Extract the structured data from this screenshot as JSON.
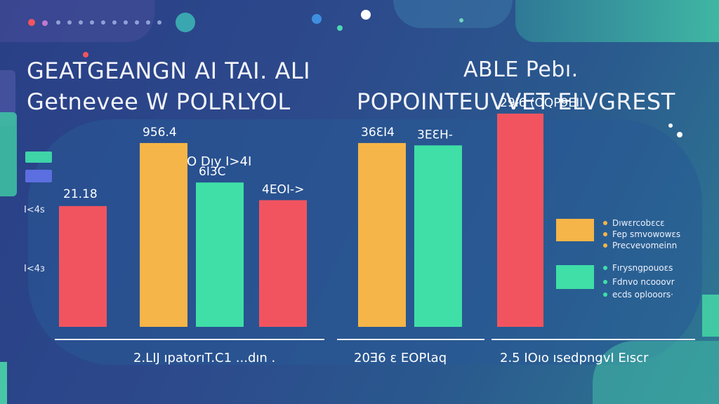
{
  "header": {
    "title_line1": "GEATGEANGN AI TAI. ALI",
    "title_line2": "Getnevee W POLRLYOL",
    "title_right_line1": "ABLE Pebı.",
    "title_right_line2": "POPOINTEUVVET ELVGREST"
  },
  "colors": {
    "red": "#f2545f",
    "orange": "#f6b548",
    "green": "#3fdfa7",
    "teal_accent": "#42c8a5",
    "purple": "#5c6fe0"
  },
  "chart_data": {
    "type": "bar",
    "title": "",
    "y_ticks": [
      {
        "label": "I<4s",
        "value": 200
      },
      {
        "label": "I<4ɜ",
        "value": 100
      }
    ],
    "ylim": [
      0,
      400
    ],
    "groups": [
      {
        "label": "2.LIJ ıpatorıT.C1 ...dın .",
        "bars": [
          {
            "label": "21.18",
            "value": 205,
            "color": "#f2545f"
          },
          {
            "label": "956.4",
            "value": 312,
            "color": "#f6b548"
          },
          {
            "label": "6I3C",
            "value": 245,
            "color": "#3fdfa7"
          },
          {
            "label": "4EOI->",
            "value": 215,
            "color": "#f2545f"
          }
        ],
        "group_title": "O Dıy I>4I"
      },
      {
        "label": "20Ǝ6 ɛ EOPƖaq",
        "bars": [
          {
            "label": "36ƐI4",
            "value": 312,
            "color": "#f6b548"
          },
          {
            "label": "3EƐH-",
            "value": 308,
            "color": "#3fdfa7"
          }
        ]
      },
      {
        "label": "2.5 IOıo ısedpngvI Eıscr",
        "bars": [
          {
            "label": "29Ɨ6 (OQP9EII",
            "value": 362,
            "color": "#f2545f"
          }
        ]
      }
    ],
    "legend": {
      "placement": "right",
      "items": [
        {
          "label": "Dıwɛrcobɛcɛ",
          "swatch": "#f6b548",
          "bullet": "#f6b548"
        },
        {
          "label": "Fep smvowowɛs",
          "bullet": "#f6b548"
        },
        {
          "label": "Precvevomeinn",
          "bullet": "#f6b548"
        },
        {
          "label": "Fırysngpouoɛs",
          "swatch": "#3fdfa7",
          "bullet": "#3fdfa7"
        },
        {
          "label": "Fdnvo ncooovr",
          "bullet": "#3fdfa7"
        },
        {
          "label": "ecds oplooors·",
          "bullet": "#3fdfa7"
        }
      ]
    },
    "grid": false
  }
}
